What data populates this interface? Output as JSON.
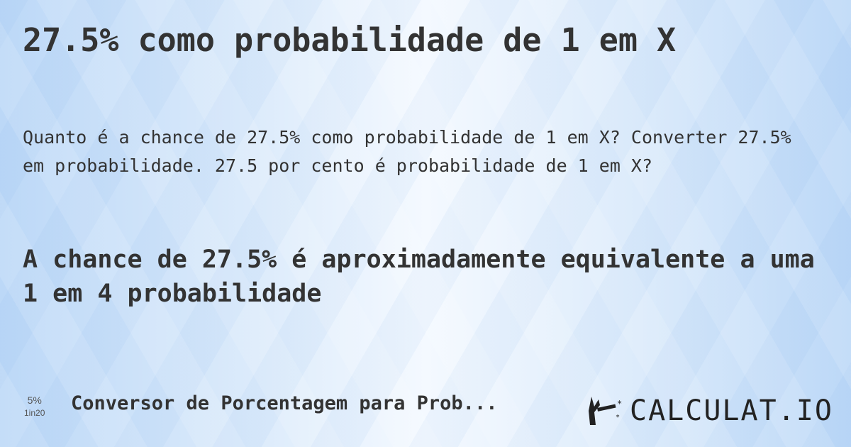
{
  "title": "27.5% como probabilidade de 1 em X",
  "question": "Quanto é a chance de 27.5% como probabilidade de 1 em X? Converter 27.5% em probabilidade. 27.5 por cento é probabilidade de 1 em X?",
  "answer": "A chance de 27.5% é aproximadamente equivalente a uma 1 em 4 probabilidade",
  "footer": {
    "mini_percent": "5%",
    "mini_odds": "1in20",
    "link": "Conversor de Porcentagem para Prob...",
    "logo": "CALCULAT.IO"
  }
}
